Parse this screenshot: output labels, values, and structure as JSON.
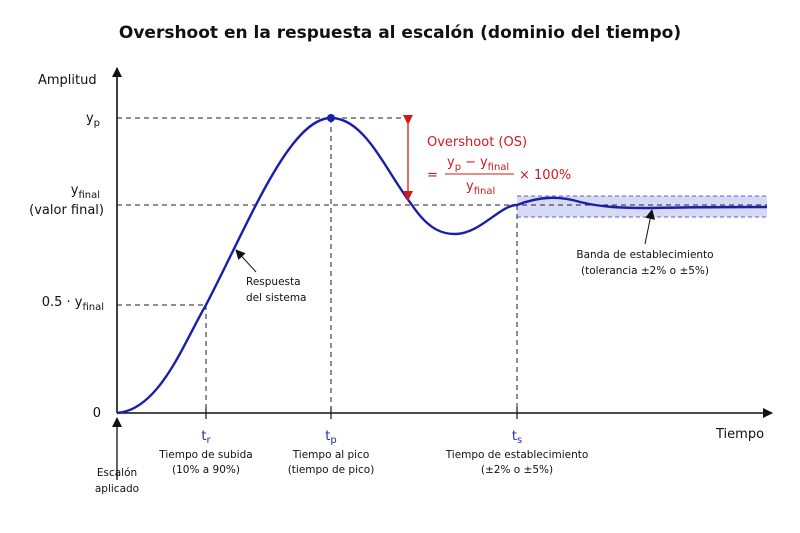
{
  "title": "Overshoot en la respuesta al escalón (dominio del tiempo)",
  "axes": {
    "y_label": "Amplitud",
    "x_label": "Tiempo",
    "origin_label": "0"
  },
  "y_marks": {
    "yp": {
      "base": "y",
      "sub": "p"
    },
    "yfinal": {
      "base": "y",
      "sub": "final",
      "line2": "(valor final)"
    },
    "half": {
      "prefix": "0.5 · y",
      "sub": "final"
    }
  },
  "x_marks": {
    "tr": {
      "base": "t",
      "sub": "r",
      "line1": "Tiempo de subida",
      "line2": "(10% a 90%)"
    },
    "tp": {
      "base": "t",
      "sub": "p",
      "line1": "Tiempo al pico",
      "line2": "(tiempo de pico)"
    },
    "ts": {
      "base": "t",
      "sub": "s",
      "line1": "Tiempo de establecimiento",
      "line2": "(±2% o ±5%)"
    }
  },
  "step_label": {
    "line1": "Escalón",
    "line2": "aplicado"
  },
  "response_label": {
    "line1": "Respuesta",
    "line2": "del sistema"
  },
  "overshoot": {
    "title": "Overshoot (OS)",
    "eq": "=",
    "num_a": "y",
    "num_a_sub": "p",
    "minus": "−",
    "num_b": "y",
    "num_b_sub": "final",
    "den": "y",
    "den_sub": "final",
    "times": "× 100%"
  },
  "band_label": {
    "line1": "Banda de establecimiento",
    "line2": "(tolerancia ±2% o ±5%)"
  },
  "colors": {
    "curve": "#1a1fa8",
    "accent_blue": "#1f2fb0",
    "overshoot_red": "#d11a1a",
    "band_fill": "#c9cdf2",
    "band_edge": "#5a63c9"
  }
}
